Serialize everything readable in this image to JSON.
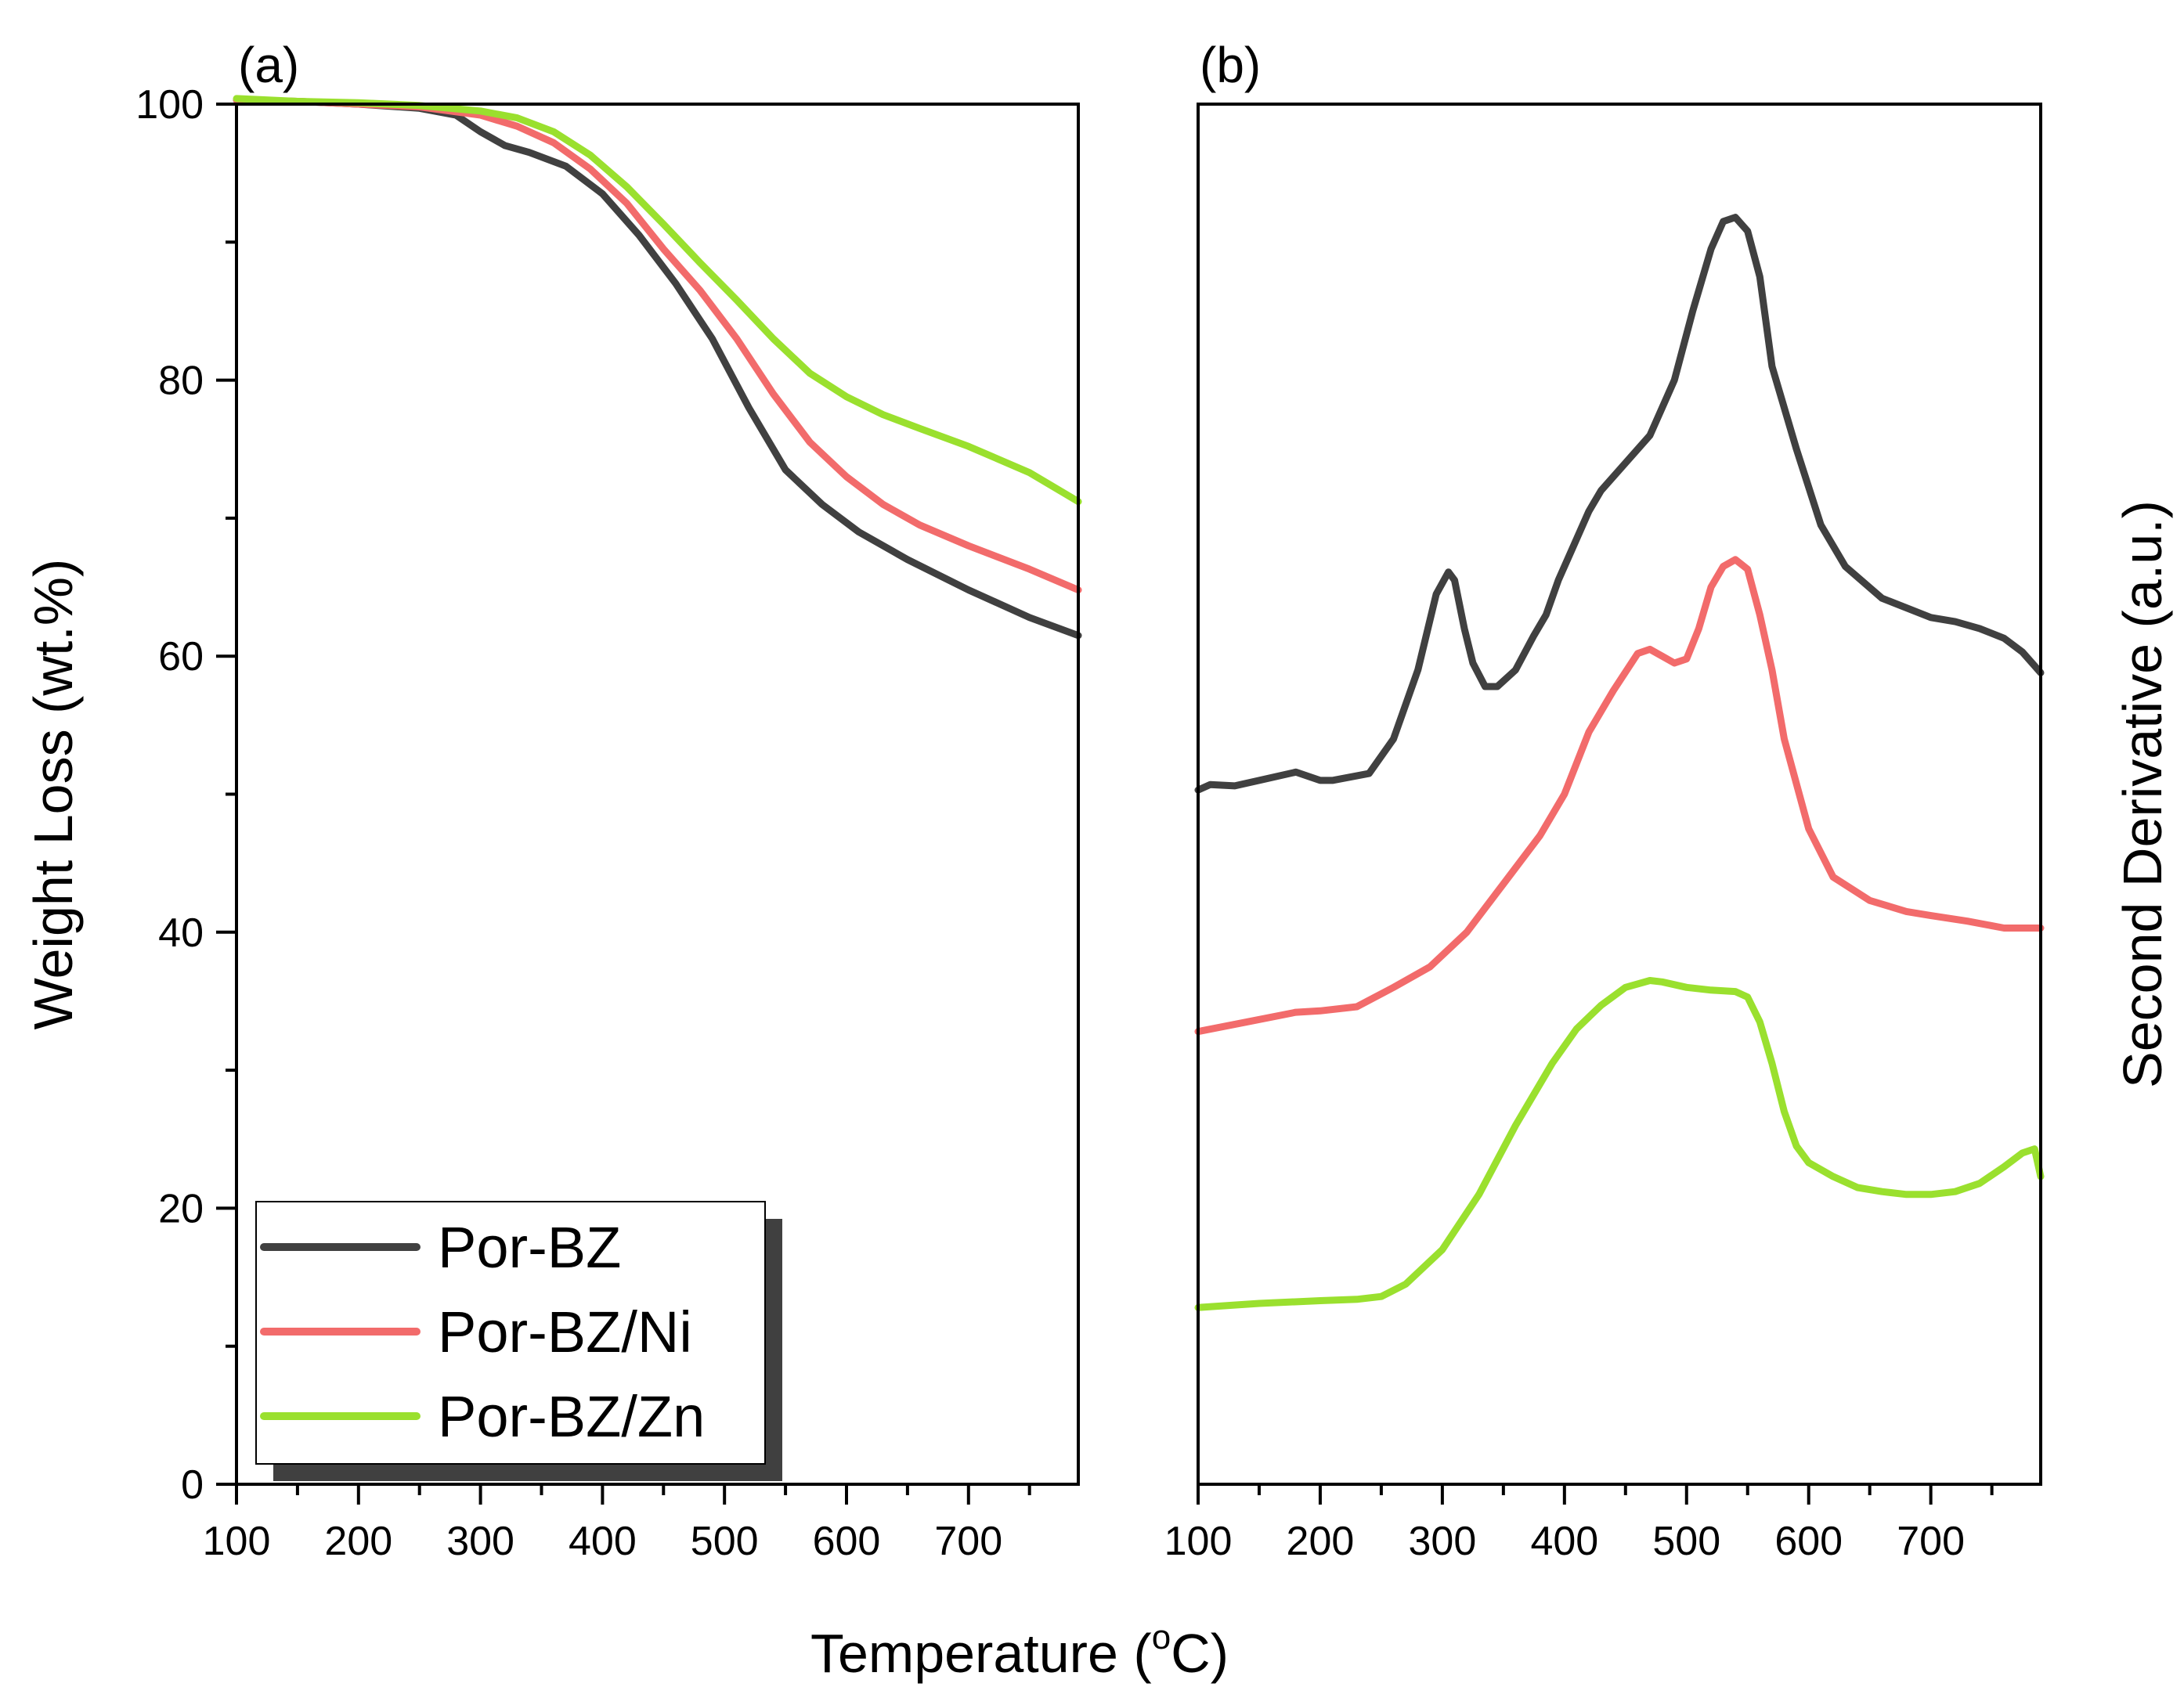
{
  "x_title": "Temperature",
  "x_title_unit_open": "(",
  "x_title_unit_sup": "o",
  "x_title_unit_close": "C)",
  "chart_data": [
    {
      "type": "line",
      "panel": "(a)",
      "title": "",
      "xlabel": "Temperature (oC)",
      "ylabel": "Weight Loss (wt.%)",
      "xlim": [
        100,
        790
      ],
      "ylim": [
        0,
        100
      ],
      "xticks": [
        100,
        200,
        300,
        400,
        500,
        600,
        700
      ],
      "yticks": [
        0,
        20,
        40,
        60,
        80,
        100
      ],
      "legend_position": "bottom-left",
      "series": [
        {
          "name": "Por-BZ",
          "color": "#404040",
          "x": [
            100,
            150,
            200,
            250,
            280,
            300,
            320,
            340,
            370,
            400,
            430,
            460,
            490,
            520,
            550,
            580,
            610,
            650,
            700,
            750,
            790
          ],
          "y": [
            100.3,
            100.2,
            100,
            99.7,
            99.2,
            98,
            97,
            96.5,
            95.5,
            93.5,
            90.5,
            87,
            83,
            78,
            73.5,
            71,
            69,
            67,
            64.8,
            62.8,
            61.5
          ]
        },
        {
          "name": "Por-BZ/Ni",
          "color": "#f26b6b",
          "x": [
            100,
            150,
            200,
            250,
            300,
            330,
            360,
            390,
            420,
            450,
            480,
            510,
            540,
            570,
            600,
            630,
            660,
            700,
            750,
            790
          ],
          "y": [
            100.3,
            100.2,
            100,
            99.8,
            99.2,
            98.4,
            97.2,
            95.3,
            92.8,
            89.5,
            86.5,
            83,
            79,
            75.5,
            73,
            71,
            69.5,
            68,
            66.3,
            64.8
          ]
        },
        {
          "name": "Por-BZ/Zn",
          "color": "#9ae02e",
          "x": [
            100,
            150,
            200,
            250,
            300,
            330,
            360,
            390,
            420,
            450,
            480,
            510,
            540,
            570,
            600,
            630,
            660,
            700,
            750,
            790
          ],
          "y": [
            100.4,
            100.2,
            100.1,
            99.9,
            99.5,
            99,
            98,
            96.3,
            94,
            91.3,
            88.5,
            85.8,
            83,
            80.5,
            78.8,
            77.5,
            76.5,
            75.2,
            73.3,
            71.2
          ]
        }
      ]
    },
    {
      "type": "line",
      "panel": "(b)",
      "title": "",
      "xlabel": "Temperature (oC)",
      "ylabel": "Second Derivative (a.u.)",
      "xlim": [
        100,
        790
      ],
      "ylim": [
        0,
        100
      ],
      "xticks": [
        100,
        200,
        300,
        400,
        500,
        600,
        700
      ],
      "yticks": [],
      "series": [
        {
          "name": "Por-BZ",
          "color": "#404040",
          "x": [
            100,
            110,
            130,
            150,
            180,
            200,
            210,
            240,
            260,
            280,
            295,
            305,
            310,
            318,
            325,
            335,
            345,
            360,
            375,
            385,
            395,
            405,
            420,
            430,
            450,
            470,
            490,
            505,
            520,
            530,
            540,
            550,
            560,
            570,
            590,
            610,
            630,
            660,
            700,
            720,
            740,
            760,
            775,
            790
          ],
          "y": [
            50.3,
            50.7,
            50.6,
            51.0,
            51.6,
            51.0,
            51.0,
            51.5,
            54.0,
            59.0,
            64.5,
            66.1,
            65.5,
            62.0,
            59.5,
            57.8,
            57.8,
            59.0,
            61.5,
            63.0,
            65.5,
            67.5,
            70.5,
            72.0,
            74.0,
            76.0,
            80.0,
            85.0,
            89.5,
            91.5,
            91.8,
            90.8,
            87.5,
            81.0,
            75.0,
            69.5,
            66.5,
            64.2,
            62.8,
            62.5,
            62.0,
            61.3,
            60.3,
            58.8
          ]
        },
        {
          "name": "Por-BZ/Ni",
          "color": "#f26b6b",
          "x": [
            100,
            140,
            180,
            200,
            230,
            260,
            290,
            320,
            350,
            380,
            400,
            420,
            440,
            460,
            470,
            480,
            490,
            500,
            510,
            520,
            530,
            540,
            550,
            560,
            570,
            580,
            600,
            620,
            650,
            680,
            700,
            730,
            760,
            790
          ],
          "y": [
            32.8,
            33.5,
            34.2,
            34.3,
            34.6,
            36.0,
            37.5,
            40.0,
            43.5,
            47.0,
            50.0,
            54.5,
            57.5,
            60.2,
            60.5,
            60.0,
            59.5,
            59.8,
            62.0,
            65.0,
            66.5,
            67.0,
            66.3,
            63.0,
            59.0,
            54.0,
            47.5,
            44.0,
            42.3,
            41.5,
            41.2,
            40.8,
            40.3,
            40.3
          ]
        },
        {
          "name": "Por-BZ/Zn",
          "color": "#9ae02e",
          "x": [
            100,
            150,
            200,
            230,
            250,
            270,
            300,
            330,
            360,
            390,
            410,
            430,
            450,
            470,
            480,
            500,
            520,
            540,
            550,
            560,
            570,
            580,
            590,
            600,
            620,
            640,
            660,
            680,
            700,
            720,
            740,
            760,
            775,
            785,
            790
          ],
          "y": [
            12.8,
            13.1,
            13.3,
            13.4,
            13.6,
            14.5,
            17.0,
            21.0,
            26.0,
            30.5,
            33.0,
            34.7,
            36.0,
            36.5,
            36.4,
            36.0,
            35.8,
            35.7,
            35.3,
            33.5,
            30.5,
            27.0,
            24.5,
            23.3,
            22.3,
            21.5,
            21.2,
            21.0,
            21.0,
            21.2,
            21.8,
            23.0,
            24.0,
            24.3,
            22.3
          ]
        }
      ]
    }
  ]
}
